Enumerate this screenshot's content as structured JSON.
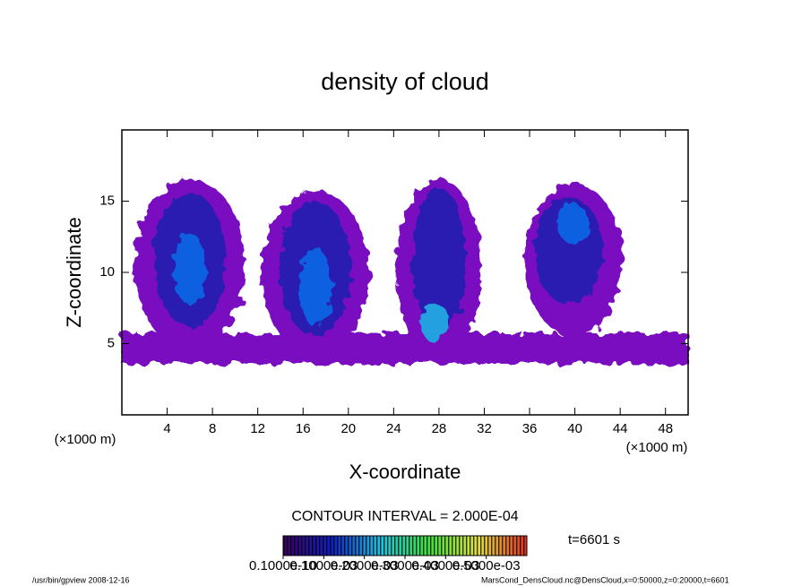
{
  "chart_data": {
    "type": "contour",
    "title": "density of cloud",
    "x_label": "X-coordinate",
    "y_label": "Z-coordinate",
    "x_unit": "(×1000 m)",
    "y_unit": "(×1000 m)",
    "xlim": [
      0,
      50
    ],
    "xticks": [
      4,
      8,
      12,
      16,
      20,
      24,
      28,
      32,
      36,
      40,
      44,
      48
    ],
    "ylim": [
      0,
      20
    ],
    "yticks": [
      5,
      10,
      15
    ],
    "contour_interval": "CONTOUR INTERVAL = 2.000E-04",
    "time_label": "t=6601 s",
    "colorbar": {
      "lim": [
        0,
        0.0006
      ],
      "ticks": [
        {
          "value": 0,
          "label": "0.1000e-10"
        },
        {
          "value": 0.0001,
          "label": "0.1000e-03"
        },
        {
          "value": 0.0002,
          "label": "0.2000e-03"
        },
        {
          "value": 0.0003,
          "label": "0.3000e-03"
        },
        {
          "value": 0.0004,
          "label": "0.4000e-03"
        },
        {
          "value": 0.0005,
          "label": "0.5000e-03"
        }
      ]
    },
    "footer_left": "/usr/bin/gpview  2008-12-16",
    "footer_right": "MarsCond_DensCloud.nc@DensCloud,x=0:50000,z=0:20000,t=6601"
  }
}
